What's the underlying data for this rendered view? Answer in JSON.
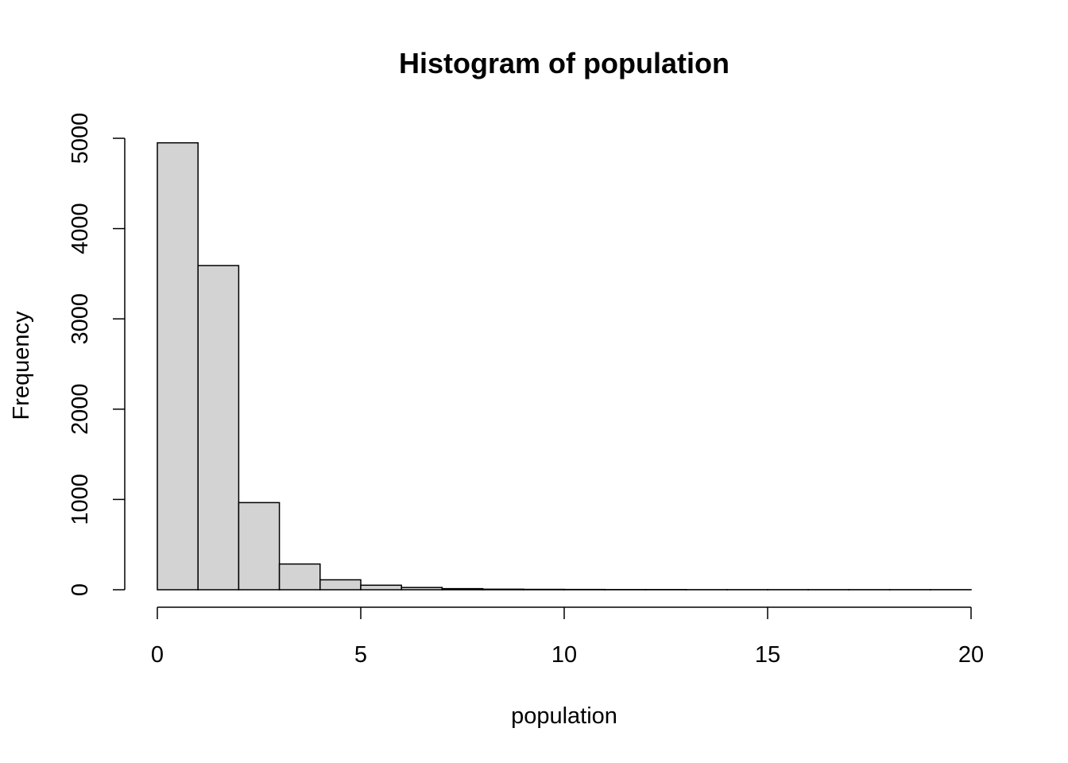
{
  "chart_data": {
    "type": "bar",
    "title": "Histogram of population",
    "xlabel": "population",
    "ylabel": "Frequency",
    "xlim": [
      0,
      20
    ],
    "ylim": [
      0,
      5000
    ],
    "x_ticks": [
      0,
      5,
      10,
      15,
      20
    ],
    "y_ticks": [
      0,
      1000,
      2000,
      3000,
      4000,
      5000
    ],
    "bin_edges": [
      0,
      1,
      2,
      3,
      4,
      5,
      6,
      7,
      8,
      9,
      10,
      11,
      12,
      13,
      14,
      15,
      16,
      17,
      18,
      19,
      20
    ],
    "values": [
      4950,
      3590,
      965,
      285,
      110,
      50,
      25,
      12,
      6,
      4,
      3,
      2,
      2,
      1,
      1,
      1,
      1,
      1,
      1,
      1
    ],
    "colors": {
      "bar_fill": "#d3d3d3",
      "bar_stroke": "#000000"
    }
  }
}
